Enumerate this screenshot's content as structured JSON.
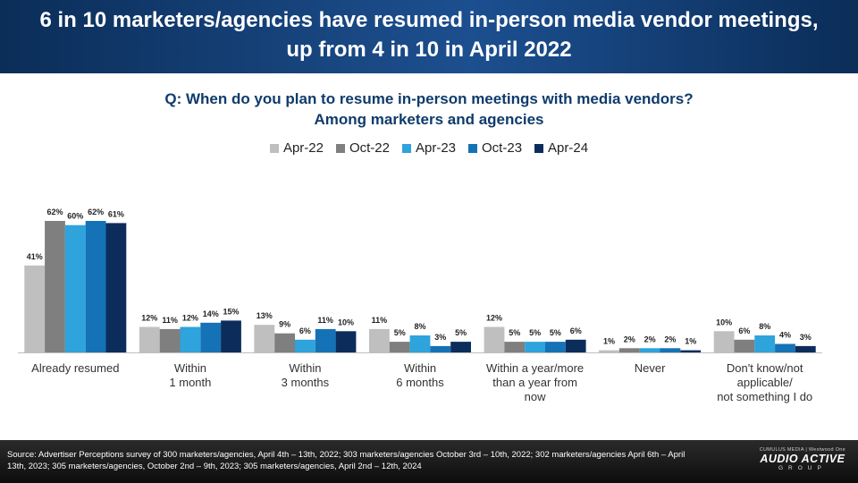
{
  "header": {
    "title": "6 in 10 marketers/agencies have resumed in-person media vendor meetings, up from 4 in 10 in April 2022"
  },
  "question": {
    "line1": "Q: When do you plan to resume in-person meetings with media vendors?",
    "line2": "Among marketers and agencies"
  },
  "footer": {
    "source": "Source: Advertiser Perceptions survey of 300 marketers/agencies, April 4th – 13th,  2022; 303 marketers/agencies October 3rd – 10th, 2022; 302 marketers/agencies April 6th – April 13th, 2023; 305 marketers/agencies, October 2nd – 9th, 2023; 305 marketers/agencies, April 2nd – 12th, 2024",
    "brand_top": "CUMULUS MEDIA | Westwood One",
    "brand_main": "AUDIO ACTIVE",
    "brand_sub": "GROUP"
  },
  "chart_data": {
    "type": "bar",
    "legend_position": "top",
    "grid": false,
    "ylim": [
      0,
      62
    ],
    "categories": [
      [
        "Already resumed"
      ],
      [
        "Within",
        "1 month"
      ],
      [
        "Within",
        "3 months"
      ],
      [
        "Within",
        "6 months"
      ],
      [
        "Within a year/more",
        "than a year from",
        "now"
      ],
      [
        "Never"
      ],
      [
        "Don't know/not",
        "applicable/",
        "not something I do"
      ]
    ],
    "series": [
      {
        "name": "Apr-22",
        "color": "#bfbfbf",
        "values": [
          41,
          12,
          13,
          11,
          12,
          1,
          10
        ]
      },
      {
        "name": "Oct-22",
        "color": "#7f7f7f",
        "values": [
          62,
          11,
          9,
          5,
          5,
          2,
          6
        ]
      },
      {
        "name": "Apr-23",
        "color": "#2ea3dc",
        "values": [
          60,
          12,
          6,
          8,
          5,
          2,
          8
        ]
      },
      {
        "name": "Oct-23",
        "color": "#1572b6",
        "values": [
          62,
          14,
          11,
          3,
          5,
          2,
          4
        ]
      },
      {
        "name": "Apr-24",
        "color": "#0c2d5c",
        "values": [
          61,
          15,
          10,
          5,
          6,
          1,
          3
        ]
      }
    ]
  }
}
